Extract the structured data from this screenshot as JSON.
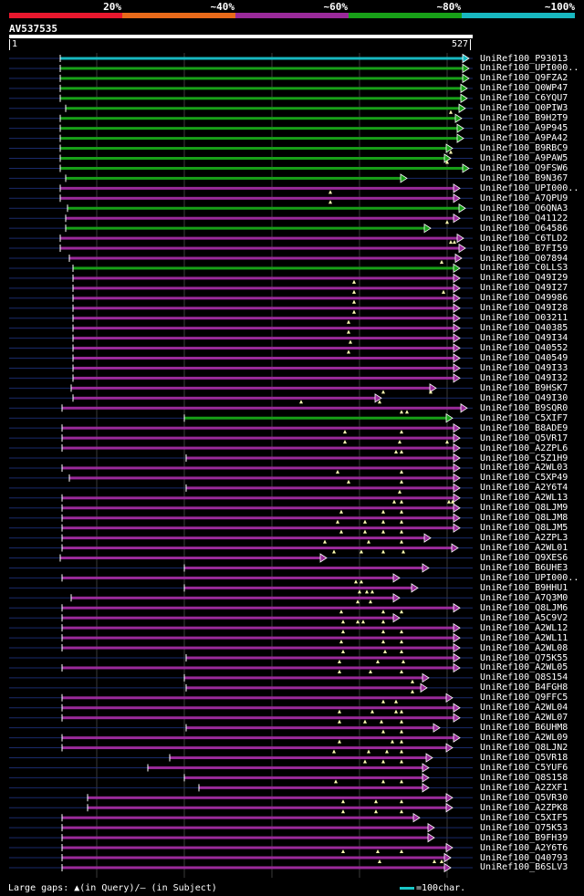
{
  "legend": {
    "labels": [
      "20%",
      "~40%",
      "~60%",
      "~80%",
      "~100%"
    ],
    "colors": [
      "#e8182e",
      "#e86a1a",
      "#9a2a9a",
      "#18a018",
      "#18b8c0"
    ]
  },
  "query": {
    "name": "AV537535",
    "start": "1",
    "end": "527"
  },
  "footer": {
    "gaps_text": "Large gaps: ▲(in Query)/— (in Subject)",
    "scale_text": "=100char."
  },
  "hits": [
    {
      "name": "UniRef100_P93013",
      "color": "#18b8c0"
    },
    {
      "name": "UniRef100_UPI000..",
      "color": "#18a018"
    },
    {
      "name": "UniRef100_Q9FZA2",
      "color": "#18a018"
    },
    {
      "name": "UniRef100_Q0WP47",
      "color": "#18a018"
    },
    {
      "name": "UniRef100_C6YQU7",
      "color": "#18a018"
    },
    {
      "name": "UniRef100_Q0PIW3",
      "color": "#18a018"
    },
    {
      "name": "UniRef100_B9H2T9",
      "color": "#18a018"
    },
    {
      "name": "UniRef100_A9P945",
      "color": "#18a018"
    },
    {
      "name": "UniRef100_A9PA42",
      "color": "#18a018"
    },
    {
      "name": "UniRef100_B9RBC9",
      "color": "#18a018"
    },
    {
      "name": "UniRef100_A9PAW5",
      "color": "#18a018"
    },
    {
      "name": "UniRef100_Q9FSW6",
      "color": "#18a018"
    },
    {
      "name": "UniRef100_B9N367",
      "color": "#18a018"
    },
    {
      "name": "UniRef100_UPI000..",
      "color": "#9a2a9a"
    },
    {
      "name": "UniRef100_A7QPU9",
      "color": "#9a2a9a"
    },
    {
      "name": "UniRef100_Q6QNA3",
      "color": "#18a018"
    },
    {
      "name": "UniRef100_Q41122",
      "color": "#9a2a9a"
    },
    {
      "name": "UniRef100_O64586",
      "color": "#18a018"
    },
    {
      "name": "UniRef100_C6TLD2",
      "color": "#9a2a9a"
    },
    {
      "name": "UniRef100_B7FI59",
      "color": "#9a2a9a"
    },
    {
      "name": "UniRef100_Q07894",
      "color": "#9a2a9a"
    },
    {
      "name": "UniRef100_C0LLS3",
      "color": "#18a018"
    },
    {
      "name": "UniRef100_Q49I29",
      "color": "#9a2a9a"
    },
    {
      "name": "UniRef100_Q49I27",
      "color": "#9a2a9a"
    },
    {
      "name": "UniRef100_O49986",
      "color": "#9a2a9a"
    },
    {
      "name": "UniRef100_Q49I28",
      "color": "#9a2a9a"
    },
    {
      "name": "UniRef100_O03211",
      "color": "#9a2a9a"
    },
    {
      "name": "UniRef100_Q40385",
      "color": "#9a2a9a"
    },
    {
      "name": "UniRef100_Q49I34",
      "color": "#9a2a9a"
    },
    {
      "name": "UniRef100_Q40552",
      "color": "#9a2a9a"
    },
    {
      "name": "UniRef100_Q40549",
      "color": "#9a2a9a"
    },
    {
      "name": "UniRef100_Q49I33",
      "color": "#9a2a9a"
    },
    {
      "name": "UniRef100_Q49I32",
      "color": "#9a2a9a"
    },
    {
      "name": "UniRef100_B9HSK7",
      "color": "#9a2a9a"
    },
    {
      "name": "UniRef100_Q49I30",
      "color": "#9a2a9a"
    },
    {
      "name": "UniRef100_B9SQR0",
      "color": "#9a2a9a"
    },
    {
      "name": "UniRef100_C5XIF7",
      "color": "#18a018"
    },
    {
      "name": "UniRef100_B8ADE9",
      "color": "#9a2a9a"
    },
    {
      "name": "UniRef100_Q5VR17",
      "color": "#9a2a9a"
    },
    {
      "name": "UniRef100_A2ZPL6",
      "color": "#9a2a9a"
    },
    {
      "name": "UniRef100_C5Z1H9",
      "color": "#9a2a9a"
    },
    {
      "name": "UniRef100_A2WL03",
      "color": "#9a2a9a"
    },
    {
      "name": "UniRef100_C5XP49",
      "color": "#9a2a9a"
    },
    {
      "name": "UniRef100_A2Y6T4",
      "color": "#9a2a9a"
    },
    {
      "name": "UniRef100_A2WL13",
      "color": "#9a2a9a"
    },
    {
      "name": "UniRef100_Q8LJM9",
      "color": "#9a2a9a"
    },
    {
      "name": "UniRef100_Q8LJM8",
      "color": "#9a2a9a"
    },
    {
      "name": "UniRef100_Q8LJM5",
      "color": "#9a2a9a"
    },
    {
      "name": "UniRef100_A2ZPL3",
      "color": "#9a2a9a"
    },
    {
      "name": "UniRef100_A2WL01",
      "color": "#9a2a9a"
    },
    {
      "name": "UniRef100_Q9XES6",
      "color": "#9a2a9a"
    },
    {
      "name": "UniRef100_B6UHE3",
      "color": "#9a2a9a"
    },
    {
      "name": "UniRef100_UPI000..",
      "color": "#9a2a9a"
    },
    {
      "name": "UniRef100_B9HHU1",
      "color": "#9a2a9a"
    },
    {
      "name": "UniRef100_A7Q3M0",
      "color": "#9a2a9a"
    },
    {
      "name": "UniRef100_Q8LJM6",
      "color": "#9a2a9a"
    },
    {
      "name": "UniRef100_A5C9V2",
      "color": "#9a2a9a"
    },
    {
      "name": "UniRef100_A2WL12",
      "color": "#9a2a9a"
    },
    {
      "name": "UniRef100_A2WL11",
      "color": "#9a2a9a"
    },
    {
      "name": "UniRef100_A2WL08",
      "color": "#9a2a9a"
    },
    {
      "name": "UniRef100_Q75K55",
      "color": "#9a2a9a"
    },
    {
      "name": "UniRef100_A2WL05",
      "color": "#9a2a9a"
    },
    {
      "name": "UniRef100_Q8S154",
      "color": "#9a2a9a"
    },
    {
      "name": "UniRef100_B4FGH8",
      "color": "#9a2a9a"
    },
    {
      "name": "UniRef100_Q9FFC5",
      "color": "#9a2a9a"
    },
    {
      "name": "UniRef100_A2WL04",
      "color": "#9a2a9a"
    },
    {
      "name": "UniRef100_A2WL07",
      "color": "#9a2a9a"
    },
    {
      "name": "UniRef100_B6UHM8",
      "color": "#9a2a9a"
    },
    {
      "name": "UniRef100_A2WL09",
      "color": "#9a2a9a"
    },
    {
      "name": "UniRef100_Q8LJN2",
      "color": "#9a2a9a"
    },
    {
      "name": "UniRef100_Q5VR18",
      "color": "#9a2a9a"
    },
    {
      "name": "UniRef100_C5YUF6",
      "color": "#9a2a9a"
    },
    {
      "name": "UniRef100_Q8S158",
      "color": "#9a2a9a"
    },
    {
      "name": "UniRef100_A2ZXF1",
      "color": "#9a2a9a"
    },
    {
      "name": "UniRef100_Q5VR30",
      "color": "#9a2a9a"
    },
    {
      "name": "UniRef100_A2ZPK8",
      "color": "#9a2a9a"
    },
    {
      "name": "UniRef100_C5XIF5",
      "color": "#9a2a9a"
    },
    {
      "name": "UniRef100_Q75K53",
      "color": "#9a2a9a"
    },
    {
      "name": "UniRef100_B9FH39",
      "color": "#9a2a9a"
    },
    {
      "name": "UniRef100_A2Y6T6",
      "color": "#9a2a9a"
    },
    {
      "name": "UniRef100_Q40793",
      "color": "#9a2a9a"
    },
    {
      "name": "UniRef100_B6SLV3",
      "color": "#9a2a9a"
    }
  ]
}
